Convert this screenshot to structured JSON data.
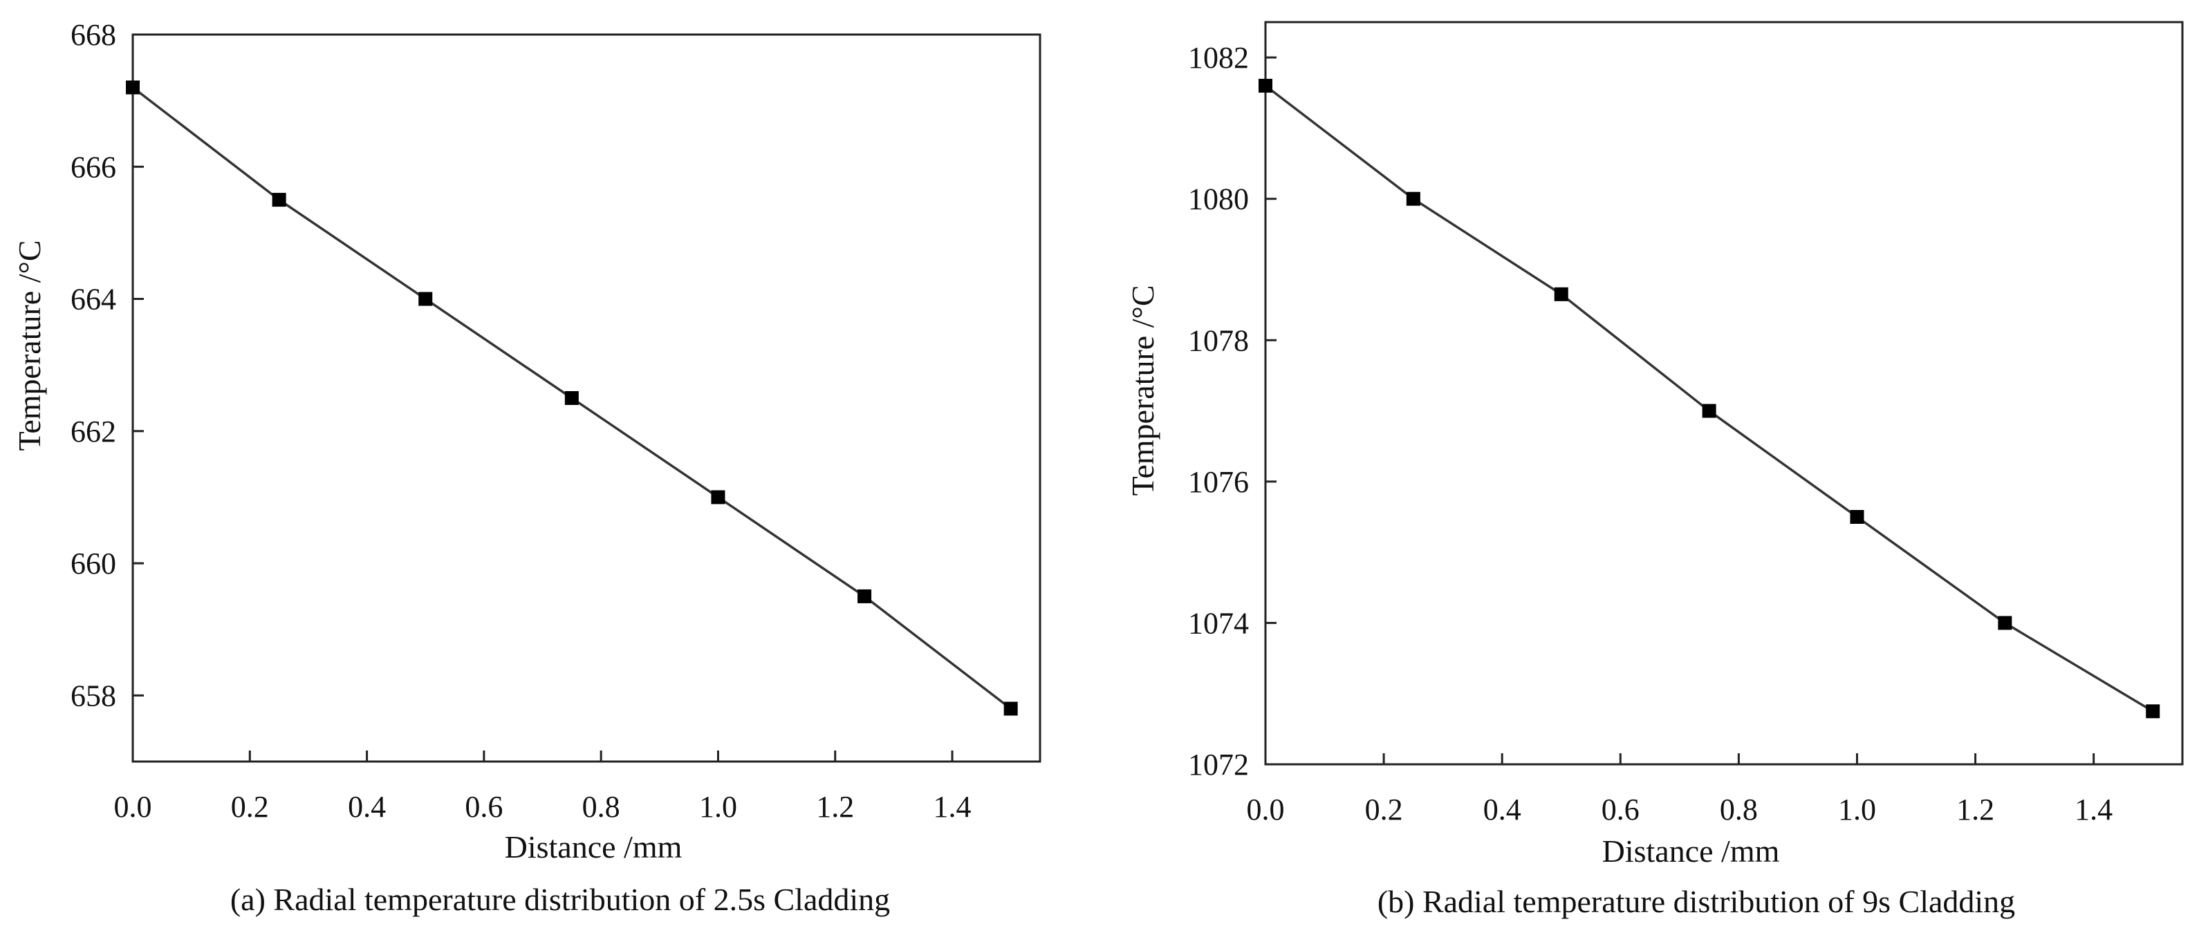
{
  "chart_data": [
    {
      "type": "line",
      "caption": "(a) Radial temperature distribution of 2.5s Cladding",
      "xlabel": "Distance /mm",
      "ylabel": "Temperature /°C",
      "xlim": [
        0.0,
        1.55
      ],
      "ylim": [
        657,
        668
      ],
      "xticks": [
        0.0,
        0.2,
        0.4,
        0.6,
        0.8,
        1.0,
        1.2,
        1.4
      ],
      "xtick_labels": [
        "0.0",
        "0.2",
        "0.4",
        "0.6",
        "0.8",
        "1.0",
        "1.2",
        "1.4"
      ],
      "yticks": [
        658,
        660,
        662,
        664,
        666,
        668
      ],
      "ytick_labels": [
        "658",
        "660",
        "662",
        "664",
        "666",
        "668"
      ],
      "series": [
        {
          "name": "temperature",
          "x": [
            0.0,
            0.25,
            0.5,
            0.75,
            1.0,
            1.25,
            1.5
          ],
          "y": [
            667.2,
            665.5,
            664.0,
            662.5,
            661.0,
            659.5,
            657.8
          ]
        }
      ]
    },
    {
      "type": "line",
      "caption": "(b) Radial temperature distribution of 9s Cladding",
      "xlabel": "Distance /mm",
      "ylabel": "Temperature /°C",
      "xlim": [
        0.0,
        1.55
      ],
      "ylim": [
        1072,
        1082.5
      ],
      "xticks": [
        0.0,
        0.2,
        0.4,
        0.6,
        0.8,
        1.0,
        1.2,
        1.4
      ],
      "xtick_labels": [
        "0.0",
        "0.2",
        "0.4",
        "0.6",
        "0.8",
        "1.0",
        "1.2",
        "1.4"
      ],
      "yticks": [
        1072,
        1074,
        1076,
        1078,
        1080,
        1082
      ],
      "ytick_labels": [
        "1072",
        "1074",
        "1076",
        "1078",
        "1080",
        "1082"
      ],
      "series": [
        {
          "name": "temperature",
          "x": [
            0.0,
            0.25,
            0.5,
            0.75,
            1.0,
            1.25,
            1.5
          ],
          "y": [
            1081.6,
            1080.0,
            1078.65,
            1077.0,
            1075.5,
            1074.0,
            1072.75
          ]
        }
      ]
    }
  ]
}
